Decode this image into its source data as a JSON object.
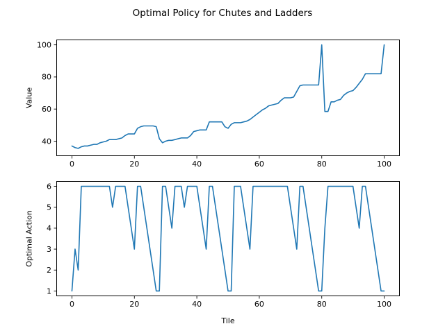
{
  "title": "Optimal Policy for Chutes and Ladders",
  "chart_data": [
    {
      "type": "line",
      "name": "value-function",
      "title": "",
      "xlabel": "",
      "ylabel": "Value",
      "x_start": 0,
      "x_step": 1,
      "x_end": 100,
      "xticks": [
        0,
        20,
        40,
        60,
        80,
        100
      ],
      "yticks": [
        40,
        60,
        80,
        100
      ],
      "xlim": [
        -5,
        105
      ],
      "ylim": [
        30.7,
        103.3
      ],
      "grid": false,
      "legend": "none",
      "line_color": "#1f77b4",
      "y": [
        37,
        36,
        35.5,
        36.5,
        37,
        37,
        37.5,
        38,
        38,
        39,
        39.5,
        40,
        41,
        41,
        41,
        41.5,
        42,
        43.5,
        44.5,
        44.5,
        44.5,
        48,
        49,
        49.5,
        49.5,
        49.5,
        49.5,
        49,
        41.5,
        39,
        40,
        40.5,
        40.5,
        41,
        41.5,
        42,
        42,
        42,
        43.5,
        46,
        46.5,
        47,
        47,
        47,
        52,
        52,
        52,
        52,
        52,
        49,
        48,
        50.5,
        51.5,
        51.5,
        51.5,
        52,
        52.5,
        53.5,
        55,
        56.5,
        58,
        59.5,
        60.5,
        62,
        62.5,
        63,
        63.5,
        65.5,
        67,
        67,
        67,
        67.5,
        71,
        74.5,
        75,
        75,
        75,
        75,
        75,
        75,
        100,
        58.5,
        58.5,
        64.5,
        64.5,
        65.5,
        66,
        68.5,
        70,
        71,
        71.5,
        73.5,
        76,
        78.5,
        82,
        82,
        82,
        82,
        82,
        82,
        100
      ]
    },
    {
      "type": "line",
      "name": "optimal-action",
      "title": "",
      "xlabel": "Tile",
      "ylabel": "Optimal Action",
      "x_start": 0,
      "x_step": 1,
      "x_end": 100,
      "xticks": [
        0,
        20,
        40,
        60,
        80,
        100
      ],
      "yticks": [
        1,
        2,
        3,
        4,
        5,
        6
      ],
      "xlim": [
        -5,
        105
      ],
      "ylim": [
        0.75,
        6.25
      ],
      "grid": false,
      "legend": "none",
      "line_color": "#1f77b4",
      "y": [
        1,
        3,
        2,
        6,
        6,
        6,
        6,
        6,
        6,
        6,
        6,
        6,
        6,
        5,
        6,
        6,
        6,
        6,
        5,
        4,
        3,
        6,
        6,
        5,
        4,
        3,
        2,
        1,
        1,
        6,
        6,
        5,
        4,
        6,
        6,
        6,
        5,
        6,
        6,
        6,
        6,
        5,
        4,
        3,
        6,
        6,
        5,
        4,
        3,
        2,
        1,
        1,
        6,
        6,
        6,
        5,
        4,
        3,
        6,
        6,
        6,
        6,
        6,
        6,
        6,
        6,
        6,
        6,
        6,
        6,
        5,
        4,
        3,
        6,
        6,
        5,
        4,
        3,
        2,
        1,
        1,
        4,
        6,
        6,
        6,
        6,
        6,
        6,
        6,
        6,
        6,
        5,
        4,
        6,
        6,
        5,
        4,
        3,
        2,
        1,
        1
      ]
    }
  ]
}
